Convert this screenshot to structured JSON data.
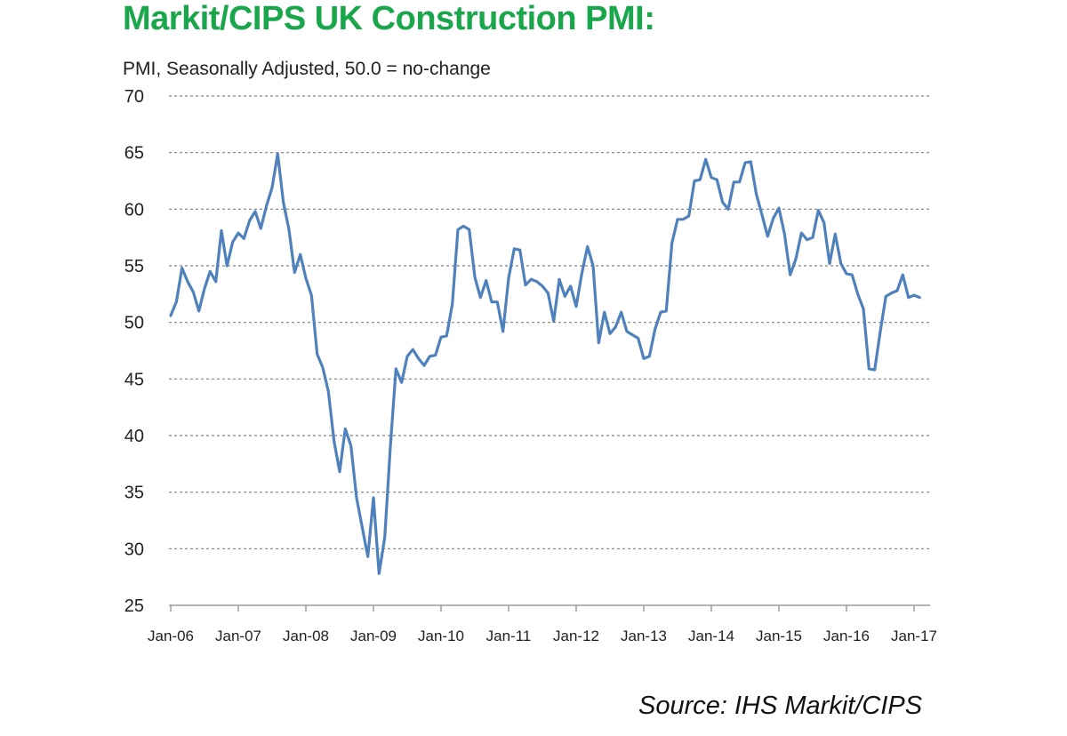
{
  "chart_data": {
    "type": "line",
    "title": "Markit/CIPS UK Construction PMI:",
    "subtitle": "PMI, Seasonally Adjusted, 50.0 = no-change",
    "source": "Source: IHS Markit/CIPS",
    "xlabel": "",
    "ylabel": "",
    "ylim": [
      25,
      70
    ],
    "yticks": [
      70,
      65,
      60,
      55,
      50,
      45,
      40,
      35,
      30,
      25
    ],
    "xticks": [
      "Jan-06",
      "Jan-07",
      "Jan-08",
      "Jan-09",
      "Jan-10",
      "Jan-11",
      "Jan-12",
      "Jan-13",
      "Jan-14",
      "Jan-15",
      "Jan-16",
      "Jan-17"
    ],
    "grid": "horizontal dashed",
    "line_color": "#4f81bd",
    "series": [
      {
        "name": "",
        "x_start": "Jan-06",
        "frequency": "monthly",
        "values": [
          50.6,
          51.8,
          54.8,
          53.6,
          52.7,
          51.0,
          53.0,
          54.5,
          53.6,
          58.1,
          55.0,
          57.1,
          57.9,
          57.4,
          59.0,
          59.8,
          58.3,
          60.3,
          61.9,
          64.9,
          60.6,
          58.2,
          54.4,
          56.0,
          53.9,
          52.4,
          47.2,
          46.0,
          43.9,
          39.5,
          36.8,
          40.6,
          39.1,
          34.5,
          31.9,
          29.3,
          34.5,
          27.8,
          31.0,
          39.0,
          45.9,
          44.7,
          47.0,
          47.6,
          46.8,
          46.2,
          47.0,
          47.1,
          48.7,
          48.8,
          51.6,
          58.2,
          58.5,
          58.2,
          54.0,
          52.2,
          53.7,
          51.8,
          51.8,
          49.2,
          53.9,
          56.5,
          56.4,
          53.3,
          53.8,
          53.6,
          53.2,
          52.6,
          50.1,
          53.8,
          52.3,
          53.2,
          51.4,
          54.3,
          56.7,
          55.0,
          48.2,
          50.9,
          49.0,
          49.6,
          50.9,
          49.2,
          48.9,
          48.6,
          46.8,
          47.0,
          49.4,
          50.9,
          51.0,
          57.0,
          59.1,
          59.1,
          59.4,
          62.5,
          62.6,
          64.4,
          62.8,
          62.6,
          60.6,
          60.0,
          62.4,
          62.4,
          64.1,
          64.2,
          61.3,
          59.5,
          57.6,
          59.2,
          60.1,
          57.8,
          54.2,
          55.6,
          57.9,
          57.3,
          57.5,
          59.9,
          58.8,
          55.2,
          57.8,
          55.2,
          54.3,
          54.2,
          52.5,
          51.2,
          45.9,
          45.8,
          49.2,
          52.3,
          52.6,
          52.8,
          54.2,
          52.2,
          52.4,
          52.2
        ]
      }
    ]
  }
}
